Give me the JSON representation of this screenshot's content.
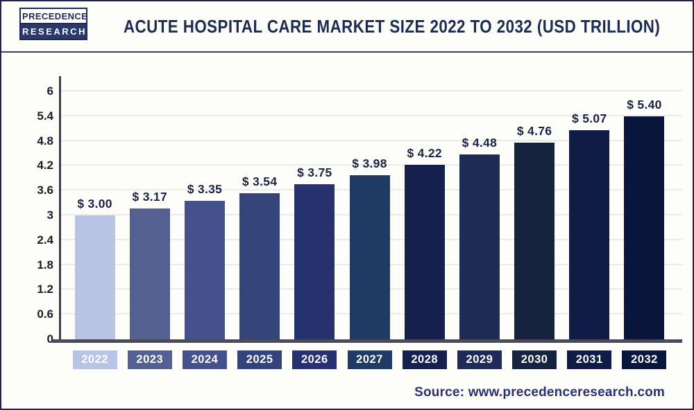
{
  "header": {
    "logo": {
      "line1": "PRECEDENCE",
      "line2": "RESEARCH"
    },
    "title": "ACUTE HOSPITAL CARE MARKET SIZE 2022 TO 2032 (USD TRILLION)"
  },
  "chart_data": {
    "type": "bar",
    "title": "Acute Hospital Care Market Size 2022 to 2032 (USD Trillion)",
    "unit": "USD Trillion",
    "categories": [
      "2022",
      "2023",
      "2024",
      "2025",
      "2026",
      "2027",
      "2028",
      "2029",
      "2030",
      "2031",
      "2032"
    ],
    "values": [
      3.0,
      3.17,
      3.35,
      3.54,
      3.75,
      3.98,
      4.22,
      4.48,
      4.76,
      5.07,
      5.4
    ],
    "bar_labels": [
      "$ 3.00",
      "$ 3.17",
      "$ 3.35",
      "$ 3.54",
      "$ 3.75",
      "$ 3.98",
      "$ 4.22",
      "$ 4.48",
      "$ 4.76",
      "$ 5.07",
      "$ 5.40"
    ],
    "bar_colors": [
      "#b9c3e3",
      "#52618f",
      "#45518b",
      "#35437b",
      "#263170",
      "#1f3a63",
      "#15214c",
      "#1d2b55",
      "#17233e",
      "#101c45",
      "#0a163c"
    ],
    "ylim": [
      0,
      6
    ],
    "yticks": [
      0,
      0.6,
      1.2,
      1.8,
      2.4,
      3,
      3.6,
      4.2,
      4.8,
      5.4,
      6
    ],
    "ytick_labels": [
      "0",
      "0.6",
      "1.2",
      "1.8",
      "2.4",
      "3",
      "3.6",
      "4.2",
      "4.8",
      "5.4",
      "6"
    ],
    "grid": true,
    "legend": "none",
    "xlabel": "",
    "ylabel": ""
  },
  "footer": {
    "source": "Source: www.precedenceresearch.com"
  },
  "colors": {
    "background": "#fdfdfa",
    "frame_border": "#23234a",
    "header_divider": "#3f3f63",
    "title_text": "#1c2b52",
    "axis_line": "#4a4a58",
    "gridline": "#eaeaef",
    "tick_text": "#1b1b28",
    "value_label_text": "#1b2340",
    "source_text": "#2b3170",
    "logo_navy": "#2c3a6b"
  }
}
